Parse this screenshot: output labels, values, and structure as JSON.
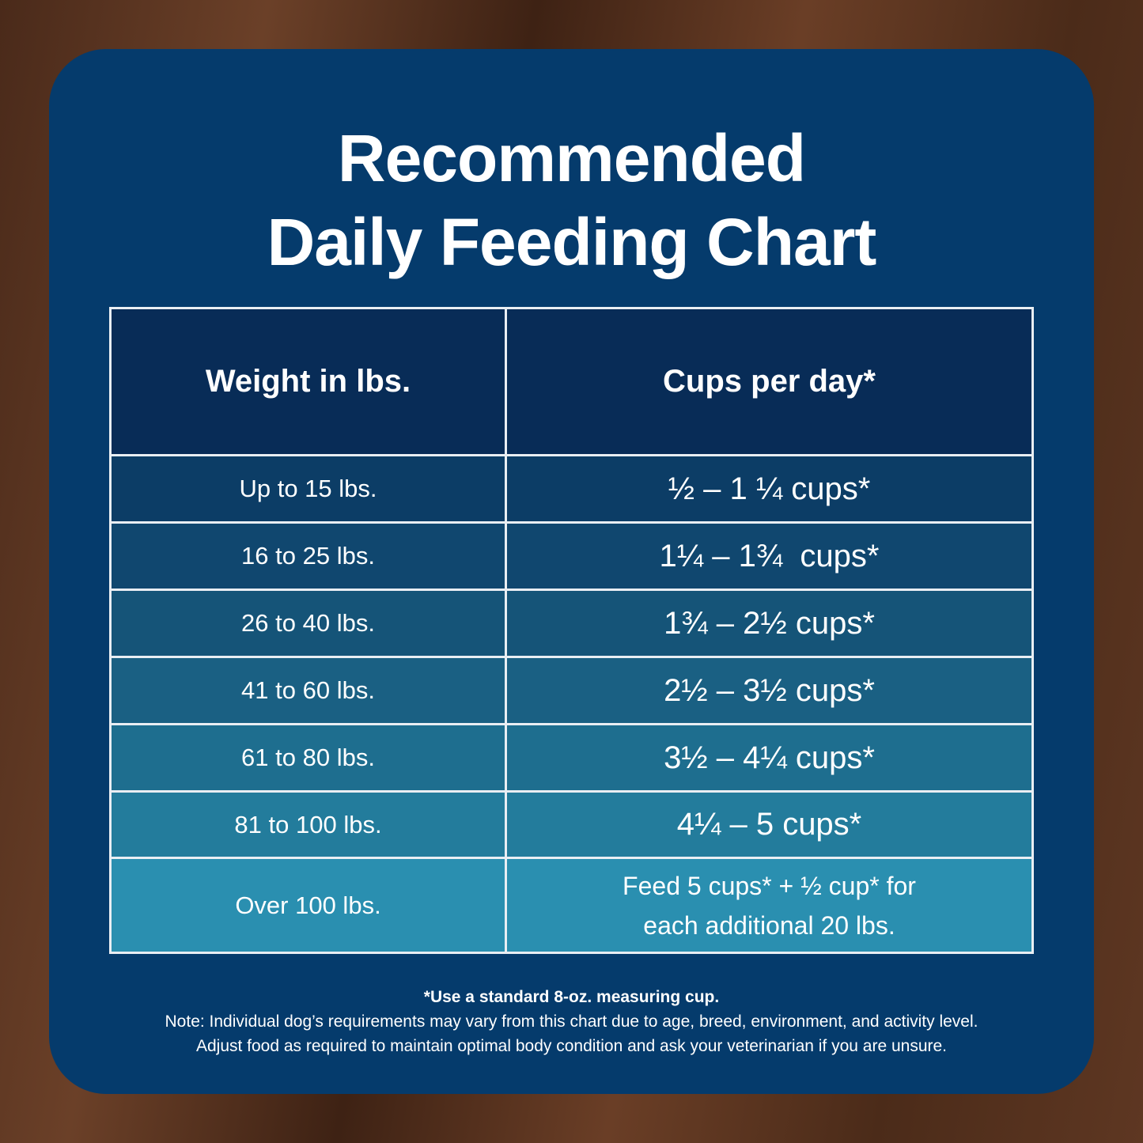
{
  "title": {
    "line1": "Recommended",
    "line2": "Daily Feeding Chart"
  },
  "table": {
    "headers": [
      "Weight in lbs.",
      "Cups per day*"
    ],
    "rows": [
      {
        "weight": "Up to 15 lbs.",
        "cups": "½ – 1 ¼ cups*",
        "color": "#0c3d66"
      },
      {
        "weight": "16 to 25 lbs.",
        "cups": "1¼ – 1¾  cups*",
        "color": "#10476f"
      },
      {
        "weight": "26 to 40 lbs.",
        "cups": "1¾ – 2½ cups*",
        "color": "#155478"
      },
      {
        "weight": "41 to 60 lbs.",
        "cups": "2½ – 3½ cups*",
        "color": "#1a6083"
      },
      {
        "weight": "61 to 80 lbs.",
        "cups": "3½ – 4¼ cups*",
        "color": "#1e6e8f"
      },
      {
        "weight": "81 to 100 lbs.",
        "cups": "4¼ – 5 cups*",
        "color": "#237c9c"
      },
      {
        "weight": "Over 100 lbs.",
        "cups_line1": "Feed 5 cups* + ½ cup* for",
        "cups_line2": "each additional 20 lbs.",
        "color": "#2a8fb0"
      }
    ]
  },
  "footnote": {
    "line1": "*Use a standard 8-oz. measuring cup.",
    "line2": "Note: Individual dog’s requirements may vary from this chart due to age, breed, environment, and activity level.",
    "line3": "Adjust food as required to maintain optimal body condition and ask your veterinarian if you are unsure."
  }
}
